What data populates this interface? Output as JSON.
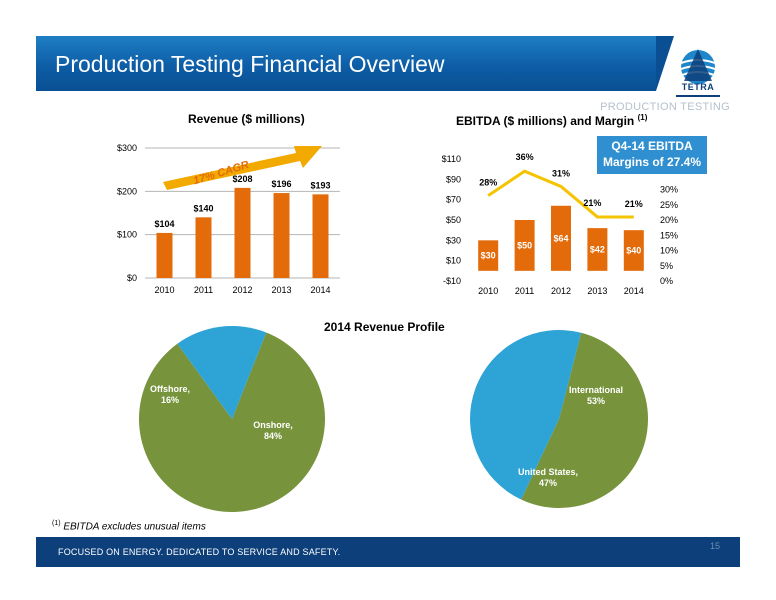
{
  "slide": {
    "title": "Production Testing Financial Overview",
    "section_tag": "PRODUCTION TESTING",
    "logo_text": "TETRA",
    "footnote_marker": "(1)",
    "footnote_text": "EBITDA excludes  unusual items",
    "footer_text": "FOCUSED ON ENERGY. DEDICATED TO SERVICE AND SAFETY.",
    "page_number": "15",
    "callout": [
      "Q4-14 EBITDA",
      "Margins of 27.4%"
    ],
    "cagr_label": "17% CAGR",
    "pie_section_title": "2014 Revenue Profile",
    "colors": {
      "brand_blue": "#0d5da6",
      "bar_orange": "#e36b0a",
      "line_yellow": "#f5c400",
      "green": "#77933c",
      "light_blue": "#2ea3d6",
      "arrow": "#f2a900"
    }
  },
  "chart_data": [
    {
      "type": "bar",
      "title": "Revenue ($ millions)",
      "categories": [
        "2010",
        "2011",
        "2012",
        "2013",
        "2014"
      ],
      "values": [
        104,
        140,
        208,
        196,
        193
      ],
      "data_labels": [
        "$104",
        "$140",
        "$208",
        "$196",
        "$193"
      ],
      "y_ticks": [
        0,
        100,
        200,
        300
      ],
      "y_tick_labels": [
        "$0",
        "$100",
        "$200",
        "$300"
      ],
      "ylim": [
        0,
        300
      ],
      "grid": true,
      "legend": "none"
    },
    {
      "type": "bar",
      "title": "EBITDA ($ millions) and Margin",
      "title_superscript": "(1)",
      "categories": [
        "2010",
        "2011",
        "2012",
        "2013",
        "2014"
      ],
      "values": [
        30,
        50,
        64,
        42,
        40
      ],
      "data_labels": [
        "$30",
        "$50",
        "$64",
        "$42",
        "$40"
      ],
      "y_ticks": [
        -10,
        10,
        30,
        50,
        70,
        90,
        110
      ],
      "y_tick_labels": [
        "-$10",
        "$10",
        "$30",
        "$50",
        "$70",
        "$90",
        "$110"
      ],
      "ylim": [
        -10,
        110
      ],
      "secondary_axis": {
        "type": "line",
        "values": [
          28,
          36,
          31,
          21,
          21
        ],
        "data_labels": [
          "28%",
          "36%",
          "31%",
          "21%",
          "21%"
        ],
        "y_ticks": [
          0,
          5,
          10,
          15,
          20,
          25,
          30
        ],
        "y_tick_labels": [
          "0%",
          "5%",
          "10%",
          "15%",
          "20%",
          "25%",
          "30%"
        ],
        "ylim": [
          0,
          40
        ]
      },
      "grid": false,
      "legend": "none"
    },
    {
      "type": "pie",
      "categories": [
        "Onshore,",
        "Offshore,"
      ],
      "values": [
        84,
        16
      ],
      "data_labels": [
        "84%",
        "16%"
      ]
    },
    {
      "type": "pie",
      "categories": [
        "International",
        "United States,"
      ],
      "values": [
        53,
        47
      ],
      "data_labels": [
        "53%",
        "47%"
      ]
    }
  ]
}
